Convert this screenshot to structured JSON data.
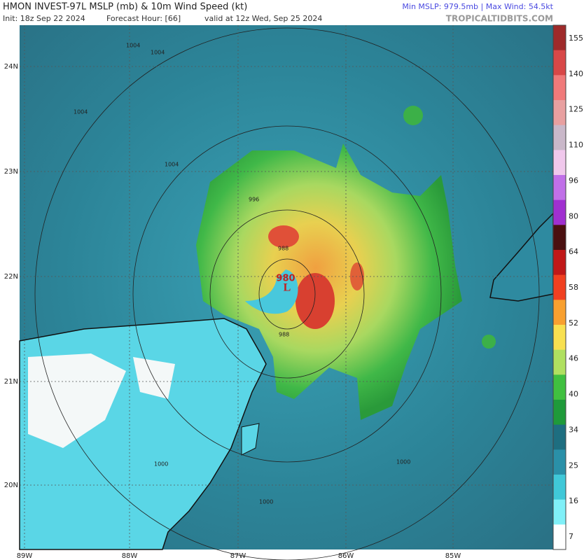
{
  "header": {
    "title": "HMON INVEST-97L MSLP (mb) & 10m Wind Speed (kt)",
    "init": "Init: 18z Sep 22 2024",
    "forecast_hour": "Forecast Hour: [66]",
    "valid": "valid at 12z Wed, Sep 25 2024",
    "stats": "Min MSLP: 979.5mb | Max Wind: 54.5kt",
    "source": "TROPICALTIDBITS.COM"
  },
  "map": {
    "lat_labels": [
      "24N",
      "23N",
      "22N",
      "21N",
      "20N"
    ],
    "lon_labels": [
      "89W",
      "88W",
      "87W",
      "86W",
      "85W"
    ],
    "low_symbol": "L",
    "low_pressure": "980",
    "contour_labels": [
      "1004",
      "1004",
      "1004",
      "1004",
      "996",
      "988",
      "988",
      "1000",
      "1000",
      "1000"
    ]
  },
  "colorbar": {
    "labels": [
      "155",
      "140",
      "125",
      "110",
      "96",
      "80",
      "64",
      "58",
      "52",
      "46",
      "40",
      "34",
      "25",
      "16",
      "7"
    ],
    "colors": [
      "#9e2a2a",
      "#d84848",
      "#f07a7a",
      "#e8a0a0",
      "#c9b8c9",
      "#f0c8ec",
      "#c070e8",
      "#a030d0",
      "#4a1010",
      "#c01818",
      "#f04020",
      "#f8a030",
      "#f8e050",
      "#b0e060",
      "#40c040",
      "#1f9a3a",
      "#1e6e80",
      "#2a90a8",
      "#40c8d8",
      "#80f0f8",
      "#ffffff"
    ]
  }
}
